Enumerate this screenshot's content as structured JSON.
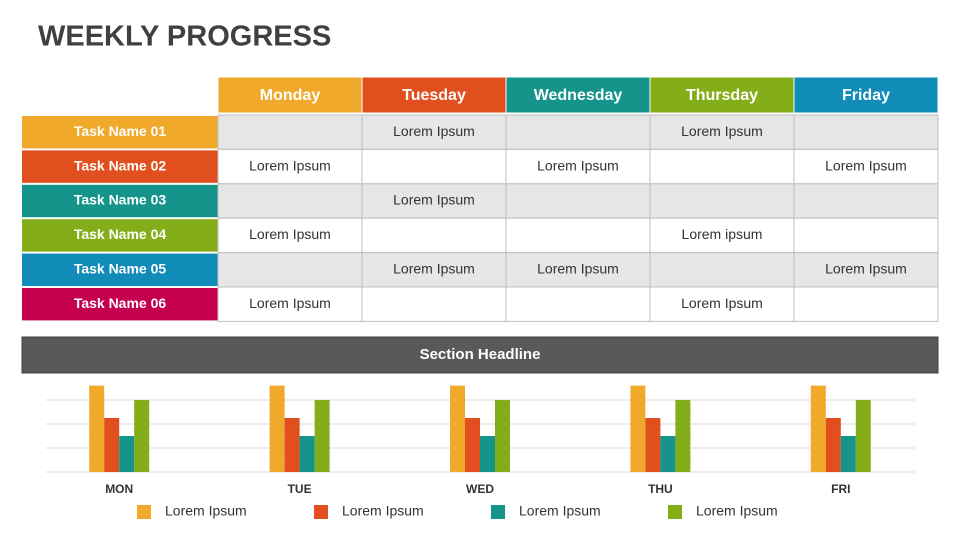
{
  "title": "WEEKLY PROGRESS",
  "table": {
    "columns": [
      {
        "label": "Monday",
        "color": "#f0a92b"
      },
      {
        "label": "Tuesday",
        "color": "#e04f1d"
      },
      {
        "label": "Wednesday",
        "color": "#14948a"
      },
      {
        "label": "Thursday",
        "color": "#84ad1a"
      },
      {
        "label": "Friday",
        "color": "#118bb8"
      }
    ],
    "rows": [
      {
        "task": "Task Name 01",
        "color": "#f0a92b",
        "cells": [
          null,
          "Lorem Ipsum",
          null,
          "Lorem Ipsum",
          null
        ]
      },
      {
        "task": "Task Name 02",
        "color": "#e04f1d",
        "cells": [
          "Lorem Ipsum",
          null,
          "Lorem Ipsum",
          null,
          "Lorem Ipsum"
        ]
      },
      {
        "task": "Task Name 03",
        "color": "#14948a",
        "cells": [
          null,
          "Lorem Ipsum",
          null,
          null,
          null
        ]
      },
      {
        "task": "Task Name 04",
        "color": "#84ad1a",
        "cells": [
          "Lorem Ipsum",
          null,
          null,
          "Lorem ipsum",
          null
        ]
      },
      {
        "task": "Task Name 05",
        "color": "#118bb8",
        "cells": [
          null,
          "Lorem Ipsum",
          "Lorem Ipsum",
          null,
          "Lorem Ipsum"
        ]
      },
      {
        "task": "Task Name 06",
        "color": "#c4004f",
        "cells": [
          "Lorem Ipsum",
          null,
          null,
          "Lorem Ipsum",
          null
        ]
      }
    ]
  },
  "section_headline": "Section Headline",
  "chart_data": {
    "type": "bar",
    "categories": [
      "MON",
      "TUE",
      "WED",
      "THU",
      "FRI"
    ],
    "series": [
      {
        "name": "Lorem Ipsum",
        "color": "#f0a92b",
        "values": [
          3.6,
          3.6,
          3.6,
          3.6,
          3.6
        ]
      },
      {
        "name": "Lorem Ipsum",
        "color": "#e04f1d",
        "values": [
          2.25,
          2.25,
          2.25,
          2.25,
          2.25
        ]
      },
      {
        "name": "Lorem Ipsum",
        "color": "#14948a",
        "values": [
          1.5,
          1.5,
          1.5,
          1.5,
          1.5
        ]
      },
      {
        "name": "Lorem Ipsum",
        "color": "#84ad1a",
        "values": [
          3,
          3,
          3,
          3,
          3
        ]
      }
    ],
    "ylim": [
      0,
      3.6
    ],
    "yticks": [
      0,
      1,
      2,
      3
    ],
    "grid": true
  }
}
